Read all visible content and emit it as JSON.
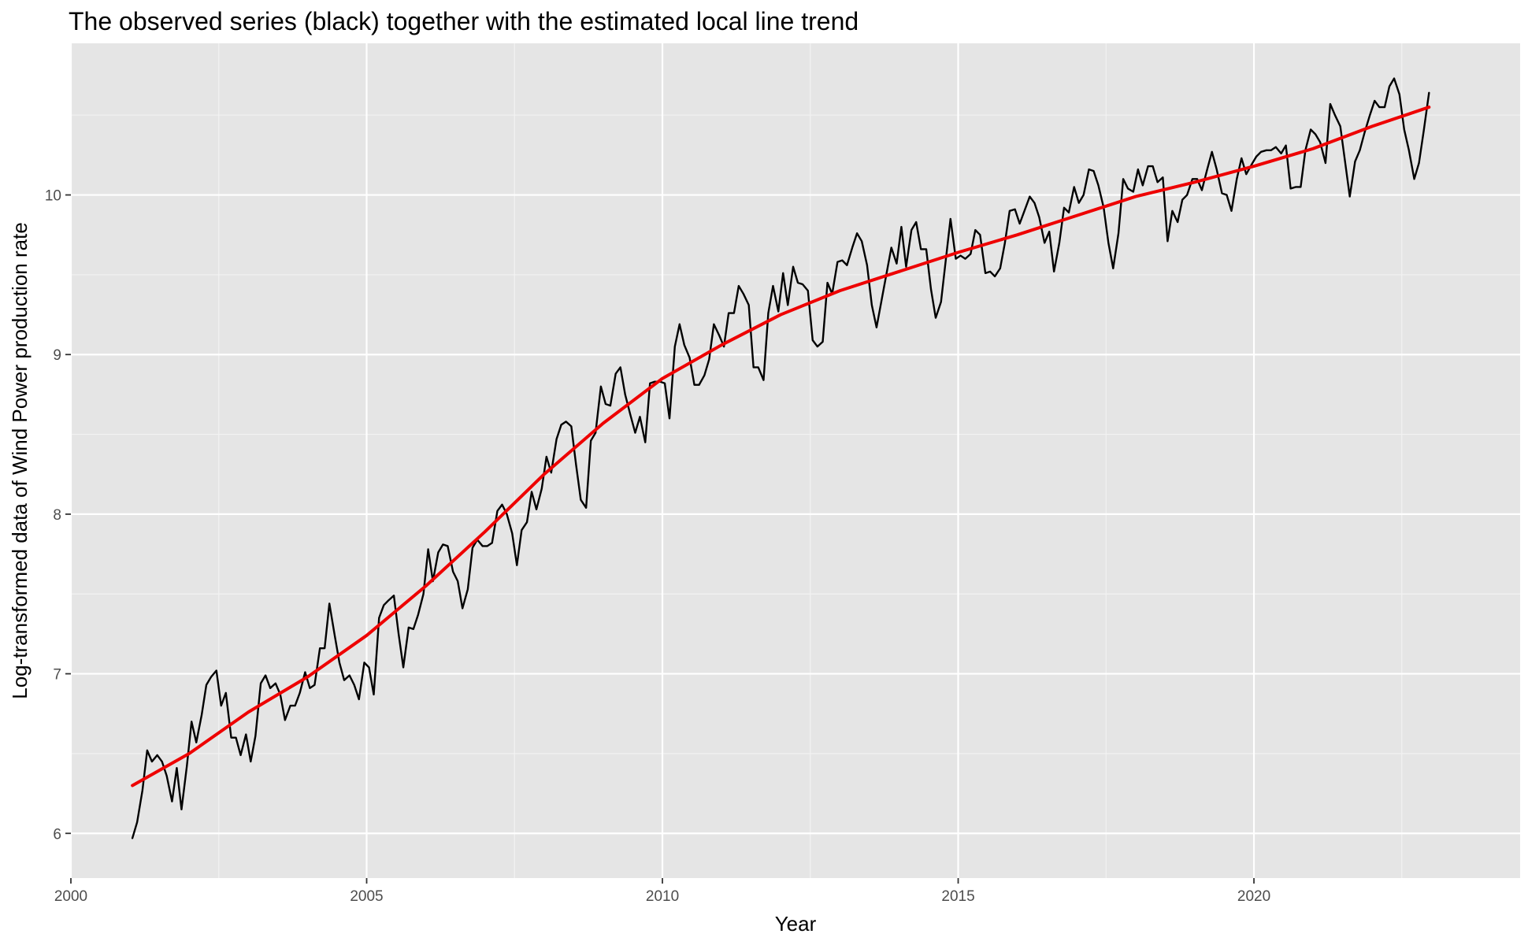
{
  "chart_data": {
    "type": "line",
    "title": "The observed series (black) together with the estimated local line trend",
    "xlabel": "Year",
    "ylabel": "Log-transformed data of Wind Power production rate",
    "xlim": [
      2000,
      2024.5
    ],
    "ylim": [
      5.72,
      10.95
    ],
    "x_ticks": [
      2000,
      2005,
      2010,
      2015,
      2020
    ],
    "x_tick_labels": [
      "2000",
      "2005",
      "2010",
      "2015",
      "2020"
    ],
    "y_ticks": [
      6,
      7,
      8,
      9,
      10
    ],
    "y_tick_labels": [
      "6",
      "7",
      "8",
      "9",
      "10"
    ],
    "grid": true,
    "legend": "none",
    "series": [
      {
        "color": "#000000",
        "x": [
          2001.04,
          2001.12,
          2001.21,
          2001.29,
          2001.37,
          2001.46,
          2001.54,
          2001.62,
          2001.71,
          2001.79,
          2001.87,
          2001.96,
          2002.04,
          2002.12,
          2002.21,
          2002.29,
          2002.37,
          2002.46,
          2002.54,
          2002.62,
          2002.71,
          2002.79,
          2002.87,
          2002.96,
          2003.04,
          2003.12,
          2003.21,
          2003.29,
          2003.37,
          2003.46,
          2003.54,
          2003.62,
          2003.71,
          2003.79,
          2003.87,
          2003.96,
          2004.04,
          2004.12,
          2004.21,
          2004.29,
          2004.37,
          2004.46,
          2004.54,
          2004.62,
          2004.71,
          2004.79,
          2004.87,
          2004.96,
          2005.04,
          2005.12,
          2005.21,
          2005.29,
          2005.37,
          2005.46,
          2005.54,
          2005.62,
          2005.71,
          2005.79,
          2005.87,
          2005.96,
          2006.04,
          2006.12,
          2006.21,
          2006.29,
          2006.37,
          2006.46,
          2006.54,
          2006.62,
          2006.71,
          2006.79,
          2006.87,
          2006.96,
          2007.04,
          2007.12,
          2007.21,
          2007.29,
          2007.37,
          2007.46,
          2007.54,
          2007.62,
          2007.71,
          2007.79,
          2007.87,
          2007.96,
          2008.04,
          2008.12,
          2008.21,
          2008.29,
          2008.37,
          2008.46,
          2008.54,
          2008.62,
          2008.71,
          2008.79,
          2008.87,
          2008.96,
          2009.04,
          2009.12,
          2009.21,
          2009.29,
          2009.37,
          2009.46,
          2009.54,
          2009.62,
          2009.71,
          2009.79,
          2009.87,
          2009.96,
          2010.04,
          2010.12,
          2010.21,
          2010.29,
          2010.37,
          2010.46,
          2010.54,
          2010.62,
          2010.71,
          2010.79,
          2010.87,
          2010.96,
          2011.04,
          2011.12,
          2011.21,
          2011.29,
          2011.37,
          2011.46,
          2011.54,
          2011.62,
          2011.71,
          2011.79,
          2011.87,
          2011.96,
          2012.04,
          2012.12,
          2012.21,
          2012.29,
          2012.37,
          2012.46,
          2012.54,
          2012.62,
          2012.71,
          2012.79,
          2012.87,
          2012.96,
          2013.04,
          2013.12,
          2013.21,
          2013.29,
          2013.37,
          2013.46,
          2013.54,
          2013.62,
          2013.71,
          2013.79,
          2013.87,
          2013.96,
          2014.04,
          2014.12,
          2014.21,
          2014.29,
          2014.37,
          2014.46,
          2014.54,
          2014.62,
          2014.71,
          2014.79,
          2014.87,
          2014.96,
          2015.04,
          2015.12,
          2015.21,
          2015.29,
          2015.37,
          2015.46,
          2015.54,
          2015.62,
          2015.71,
          2015.79,
          2015.87,
          2015.96,
          2016.04,
          2016.12,
          2016.21,
          2016.29,
          2016.37,
          2016.46,
          2016.54,
          2016.62,
          2016.71,
          2016.79,
          2016.87,
          2016.96,
          2017.04,
          2017.12,
          2017.21,
          2017.29,
          2017.37,
          2017.46,
          2017.54,
          2017.62,
          2017.71,
          2017.79,
          2017.87,
          2017.96,
          2018.04,
          2018.12,
          2018.21,
          2018.29,
          2018.37,
          2018.46,
          2018.54,
          2018.62,
          2018.71,
          2018.79,
          2018.87,
          2018.96,
          2019.04,
          2019.12,
          2019.21,
          2019.29,
          2019.37,
          2019.46,
          2019.54,
          2019.62,
          2019.71,
          2019.79,
          2019.87,
          2019.96,
          2020.04,
          2020.12,
          2020.21,
          2020.29,
          2020.37,
          2020.46,
          2020.54,
          2020.62,
          2020.71,
          2020.79,
          2020.87,
          2020.96,
          2021.04,
          2021.12,
          2021.21,
          2021.29,
          2021.37,
          2021.46,
          2021.54,
          2021.62,
          2021.71,
          2021.79,
          2021.87,
          2021.96,
          2022.04,
          2022.12,
          2022.21,
          2022.29,
          2022.37,
          2022.46,
          2022.54,
          2022.62,
          2022.71,
          2022.79,
          2022.87,
          2022.96
        ],
        "values": [
          5.97,
          6.07,
          6.27,
          6.52,
          6.45,
          6.49,
          6.45,
          6.36,
          6.2,
          6.41,
          6.15,
          6.42,
          6.7,
          6.57,
          6.74,
          6.93,
          6.98,
          7.02,
          6.8,
          6.88,
          6.6,
          6.6,
          6.49,
          6.62,
          6.45,
          6.61,
          6.94,
          6.99,
          6.91,
          6.94,
          6.87,
          6.71,
          6.8,
          6.8,
          6.88,
          7.01,
          6.91,
          6.93,
          7.16,
          7.16,
          7.44,
          7.24,
          7.07,
          6.96,
          6.99,
          6.93,
          6.84,
          7.07,
          7.04,
          6.87,
          7.35,
          7.43,
          7.46,
          7.49,
          7.25,
          7.04,
          7.29,
          7.28,
          7.37,
          7.5,
          7.78,
          7.58,
          7.76,
          7.81,
          7.8,
          7.64,
          7.58,
          7.41,
          7.53,
          7.79,
          7.84,
          7.8,
          7.8,
          7.82,
          8.02,
          8.06,
          8.0,
          7.88,
          7.68,
          7.9,
          7.95,
          8.14,
          8.03,
          8.16,
          8.36,
          8.26,
          8.47,
          8.56,
          8.58,
          8.55,
          8.31,
          8.09,
          8.04,
          8.46,
          8.51,
          8.8,
          8.69,
          8.68,
          8.88,
          8.92,
          8.75,
          8.62,
          8.51,
          8.61,
          8.45,
          8.82,
          8.83,
          8.83,
          8.82,
          8.6,
          9.05,
          9.19,
          9.06,
          8.98,
          8.81,
          8.81,
          8.87,
          8.97,
          9.19,
          9.12,
          9.05,
          9.26,
          9.26,
          9.43,
          9.38,
          9.31,
          8.92,
          8.92,
          8.84,
          9.26,
          9.43,
          9.27,
          9.51,
          9.31,
          9.55,
          9.45,
          9.44,
          9.4,
          9.09,
          9.05,
          9.08,
          9.45,
          9.38,
          9.58,
          9.59,
          9.56,
          9.67,
          9.76,
          9.71,
          9.56,
          9.31,
          9.17,
          9.35,
          9.51,
          9.67,
          9.57,
          9.8,
          9.55,
          9.78,
          9.83,
          9.66,
          9.66,
          9.41,
          9.23,
          9.33,
          9.59,
          9.85,
          9.6,
          9.62,
          9.6,
          9.63,
          9.78,
          9.75,
          9.51,
          9.52,
          9.49,
          9.54,
          9.7,
          9.9,
          9.91,
          9.82,
          9.9,
          9.99,
          9.95,
          9.86,
          9.7,
          9.77,
          9.52,
          9.7,
          9.92,
          9.89,
          10.05,
          9.95,
          10.0,
          10.16,
          10.15,
          10.06,
          9.92,
          9.7,
          9.54,
          9.76,
          10.1,
          10.04,
          10.02,
          10.16,
          10.06,
          10.18,
          10.18,
          10.08,
          10.11,
          9.71,
          9.9,
          9.83,
          9.97,
          10.0,
          10.1,
          10.1,
          10.03,
          10.16,
          10.27,
          10.16,
          10.01,
          10.0,
          9.9,
          10.1,
          10.23,
          10.13,
          10.19,
          10.24,
          10.27,
          10.28,
          10.28,
          10.3,
          10.26,
          10.31,
          10.04,
          10.05,
          10.05,
          10.28,
          10.41,
          10.38,
          10.33,
          10.2,
          10.57,
          10.5,
          10.43,
          10.21,
          9.99,
          10.21,
          10.28,
          10.39,
          10.5,
          10.59,
          10.55,
          10.55,
          10.68,
          10.73,
          10.63,
          10.41,
          10.28,
          10.1,
          10.2,
          10.4,
          10.64
        ]
      },
      {
        "color": "#ee0000",
        "x": [
          2001.04,
          2002.0,
          2003.0,
          2004.0,
          2005.0,
          2006.0,
          2007.0,
          2008.0,
          2009.0,
          2010.0,
          2011.0,
          2012.0,
          2013.0,
          2014.0,
          2015.0,
          2016.0,
          2017.0,
          2018.0,
          2019.0,
          2020.0,
          2021.0,
          2022.0,
          2022.96
        ],
        "values": [
          6.3,
          6.5,
          6.76,
          6.98,
          7.24,
          7.55,
          7.89,
          8.25,
          8.57,
          8.85,
          9.06,
          9.25,
          9.4,
          9.52,
          9.64,
          9.75,
          9.87,
          9.99,
          10.08,
          10.18,
          10.29,
          10.43,
          10.55
        ]
      }
    ]
  }
}
